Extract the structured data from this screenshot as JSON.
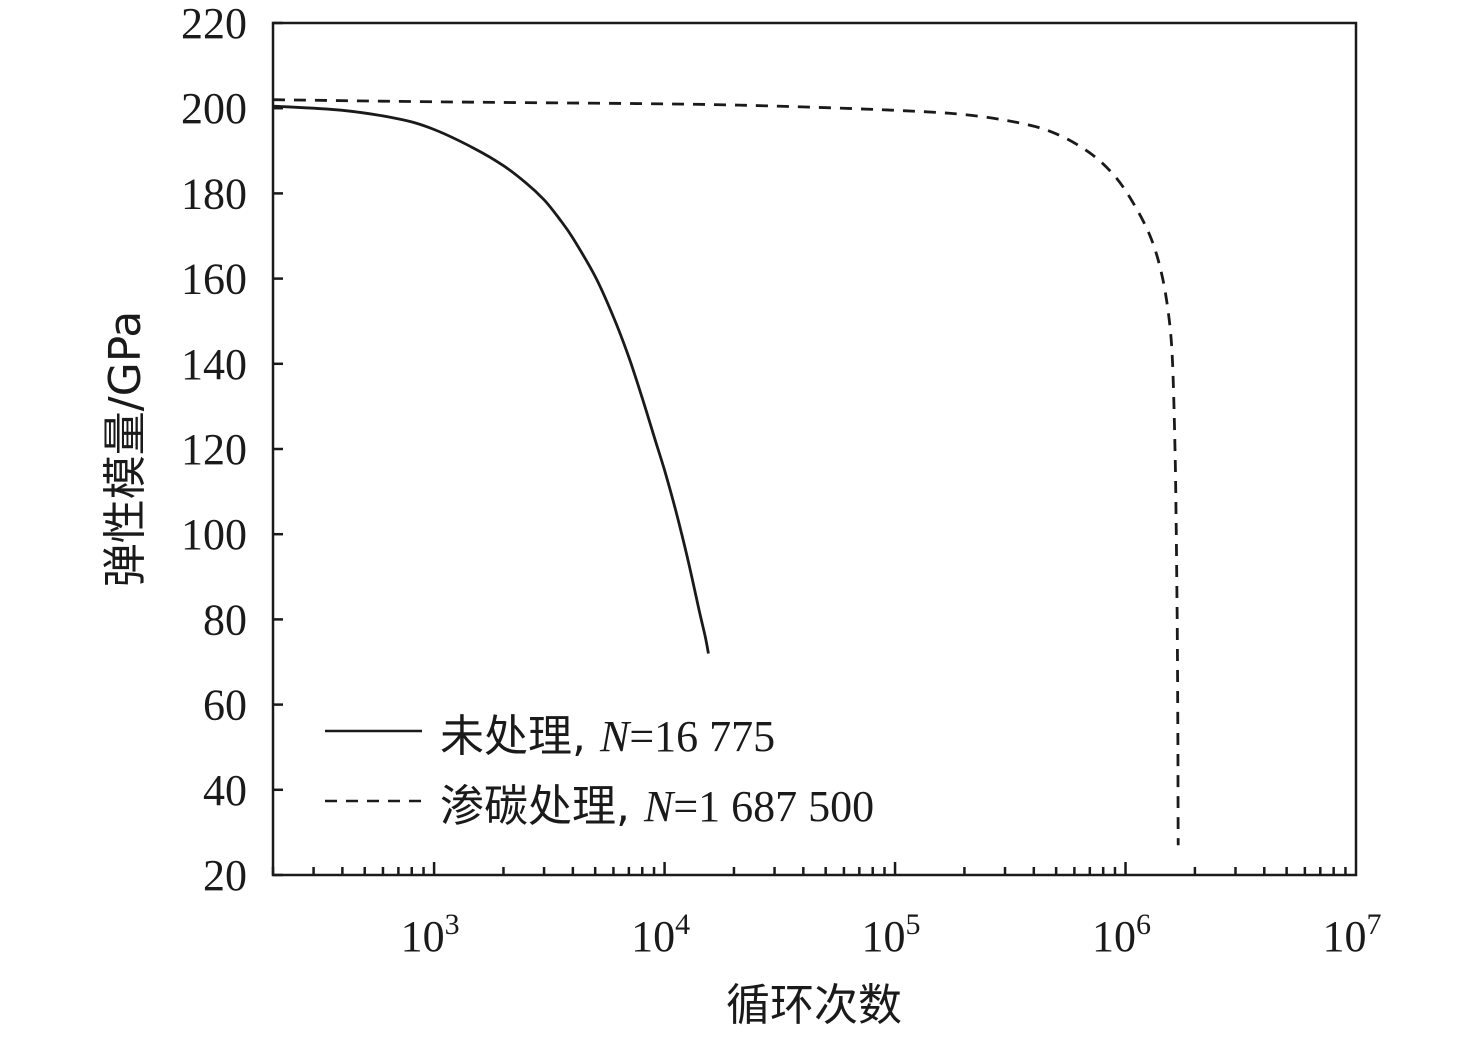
{
  "chart_data": {
    "type": "line",
    "xlabel": "循环次数",
    "ylabel": "弹性模量/GPa",
    "x_scale": "log",
    "xlim": [
      200,
      10000000
    ],
    "ylim": [
      20,
      220
    ],
    "grid": false,
    "legend_position": "bottom-left",
    "x_ticks": [
      {
        "value": 1000,
        "base": "10",
        "exp": "3"
      },
      {
        "value": 10000,
        "base": "10",
        "exp": "4"
      },
      {
        "value": 100000,
        "base": "10",
        "exp": "5"
      },
      {
        "value": 1000000,
        "base": "10",
        "exp": "6"
      },
      {
        "value": 10000000,
        "base": "10",
        "exp": "7"
      }
    ],
    "y_ticks": [
      20,
      40,
      60,
      80,
      100,
      120,
      140,
      160,
      180,
      200,
      220
    ],
    "series": [
      {
        "label_prefix": "未处理, ",
        "label_var": "N",
        "label_value": "=16 775",
        "style": "solid",
        "color": "#1a1a1a",
        "points": [
          [
            200,
            200.5
          ],
          [
            400,
            199.5
          ],
          [
            700,
            197.5
          ],
          [
            1000,
            195
          ],
          [
            1500,
            190.5
          ],
          [
            2000,
            186.5
          ],
          [
            2500,
            182.5
          ],
          [
            3000,
            178.5
          ],
          [
            3500,
            174
          ],
          [
            4000,
            169.5
          ],
          [
            5000,
            160.5
          ],
          [
            6000,
            151
          ],
          [
            7000,
            141.5
          ],
          [
            8000,
            132
          ],
          [
            9000,
            123
          ],
          [
            10000,
            115
          ],
          [
            11000,
            107
          ],
          [
            12000,
            99
          ],
          [
            13000,
            91
          ],
          [
            14000,
            83
          ],
          [
            15000,
            76
          ],
          [
            15500,
            72
          ]
        ]
      },
      {
        "label_prefix": "渗碳处理, ",
        "label_var": "N",
        "label_value": "=1 687 500",
        "style": "dashed",
        "color": "#1a1a1a",
        "points": [
          [
            200,
            202
          ],
          [
            1000,
            201.5
          ],
          [
            10000,
            201
          ],
          [
            30000,
            200.5
          ],
          [
            100000,
            199.5
          ],
          [
            200000,
            198.5
          ],
          [
            350000,
            196.5
          ],
          [
            500000,
            194
          ],
          [
            700000,
            189.5
          ],
          [
            900000,
            184
          ],
          [
            1100000,
            177
          ],
          [
            1300000,
            169
          ],
          [
            1450000,
            160
          ],
          [
            1550000,
            150
          ],
          [
            1600000,
            140
          ],
          [
            1640000,
            120
          ],
          [
            1660000,
            100
          ],
          [
            1675000,
            80
          ],
          [
            1685000,
            60
          ],
          [
            1690000,
            40
          ],
          [
            1692000,
            27
          ]
        ]
      }
    ]
  }
}
